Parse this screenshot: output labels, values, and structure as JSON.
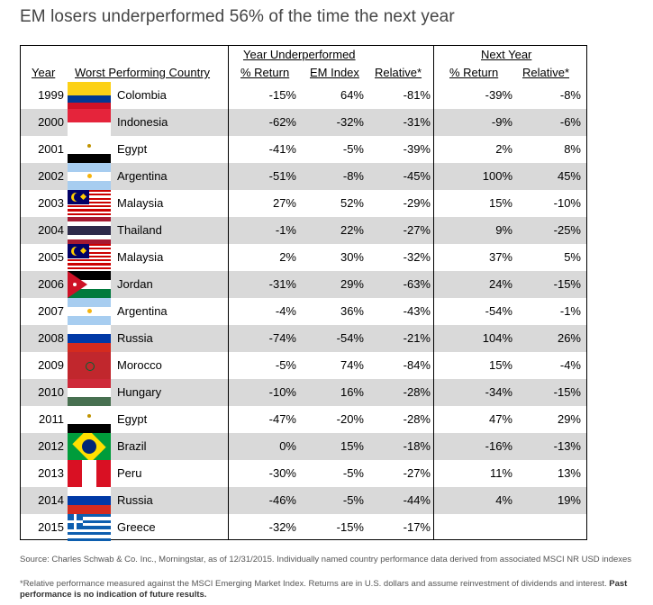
{
  "title": "EM losers underperformed 56% of the time the next year",
  "group_headers": {
    "year_underperformed": "Year Underperformed",
    "next_year": "Next Year"
  },
  "columns": [
    "Year",
    "Worst Performing Country",
    "% Return",
    "EM Index",
    "Relative*",
    "% Return",
    "Relative*"
  ],
  "chart_data": {
    "type": "table",
    "columns": [
      "Year",
      "Worst Performing Country",
      "% Return",
      "EM Index",
      "Relative*",
      "% Return",
      "Relative*"
    ],
    "rows": [
      {
        "year": "1999",
        "country": "Colombia",
        "flag": "colombia-flag",
        "ret": "-15%",
        "em": "64%",
        "rel": "-81%",
        "next_ret": "-39%",
        "next_rel": "-8%"
      },
      {
        "year": "2000",
        "country": "Indonesia",
        "flag": "indonesia-flag",
        "ret": "-62%",
        "em": "-32%",
        "rel": "-31%",
        "next_ret": "-9%",
        "next_rel": "-6%"
      },
      {
        "year": "2001",
        "country": "Egypt",
        "flag": "egypt-flag",
        "ret": "-41%",
        "em": "-5%",
        "rel": "-39%",
        "next_ret": "2%",
        "next_rel": "8%"
      },
      {
        "year": "2002",
        "country": "Argentina",
        "flag": "argentina-flag",
        "ret": "-51%",
        "em": "-8%",
        "rel": "-45%",
        "next_ret": "100%",
        "next_rel": "45%"
      },
      {
        "year": "2003",
        "country": "Malaysia",
        "flag": "malaysia-flag",
        "ret": "27%",
        "em": "52%",
        "rel": "-29%",
        "next_ret": "15%",
        "next_rel": "-10%"
      },
      {
        "year": "2004",
        "country": "Thailand",
        "flag": "thailand-flag",
        "ret": "-1%",
        "em": "22%",
        "rel": "-27%",
        "next_ret": "9%",
        "next_rel": "-25%"
      },
      {
        "year": "2005",
        "country": "Malaysia",
        "flag": "malaysia-flag",
        "ret": "2%",
        "em": "30%",
        "rel": "-32%",
        "next_ret": "37%",
        "next_rel": "5%"
      },
      {
        "year": "2006",
        "country": "Jordan",
        "flag": "jordan-flag",
        "ret": "-31%",
        "em": "29%",
        "rel": "-63%",
        "next_ret": "24%",
        "next_rel": "-15%"
      },
      {
        "year": "2007",
        "country": "Argentina",
        "flag": "argentina-flag",
        "ret": "-4%",
        "em": "36%",
        "rel": "-43%",
        "next_ret": "-54%",
        "next_rel": "-1%"
      },
      {
        "year": "2008",
        "country": "Russia",
        "flag": "russia-flag",
        "ret": "-74%",
        "em": "-54%",
        "rel": "-21%",
        "next_ret": "104%",
        "next_rel": "26%"
      },
      {
        "year": "2009",
        "country": "Morocco",
        "flag": "morocco-flag",
        "ret": "-5%",
        "em": "74%",
        "rel": "-84%",
        "next_ret": "15%",
        "next_rel": "-4%"
      },
      {
        "year": "2010",
        "country": "Hungary",
        "flag": "hungary-flag",
        "ret": "-10%",
        "em": "16%",
        "rel": "-28%",
        "next_ret": "-34%",
        "next_rel": "-15%"
      },
      {
        "year": "2011",
        "country": "Egypt",
        "flag": "egypt-flag",
        "ret": "-47%",
        "em": "-20%",
        "rel": "-28%",
        "next_ret": "47%",
        "next_rel": "29%"
      },
      {
        "year": "2012",
        "country": "Brazil",
        "flag": "brazil-flag",
        "ret": "0%",
        "em": "15%",
        "rel": "-18%",
        "next_ret": "-16%",
        "next_rel": "-13%"
      },
      {
        "year": "2013",
        "country": "Peru",
        "flag": "peru-flag",
        "ret": "-30%",
        "em": "-5%",
        "rel": "-27%",
        "next_ret": "11%",
        "next_rel": "13%"
      },
      {
        "year": "2014",
        "country": "Russia",
        "flag": "russia-flag",
        "ret": "-46%",
        "em": "-5%",
        "rel": "-44%",
        "next_ret": "4%",
        "next_rel": "19%"
      },
      {
        "year": "2015",
        "country": "Greece",
        "flag": "greece-flag",
        "ret": "-32%",
        "em": "-15%",
        "rel": "-17%",
        "next_ret": "",
        "next_rel": ""
      }
    ]
  },
  "footer": {
    "source": "Source: Charles Schwab & Co. Inc., Morningstar, as of 12/31/2015. Individually named country performance data derived from associated MSCI NR USD indexes",
    "note": "*Relative performance measured against the MSCI Emerging Market Index. Returns are in U.S. dollars and assume reinvestment of dividends and interest.",
    "disclaimer": "Past performance is no indication of future results."
  },
  "colors": {
    "row_shade": "#d9d9d9",
    "title_text": "#444444",
    "footer_text": "#555555"
  }
}
